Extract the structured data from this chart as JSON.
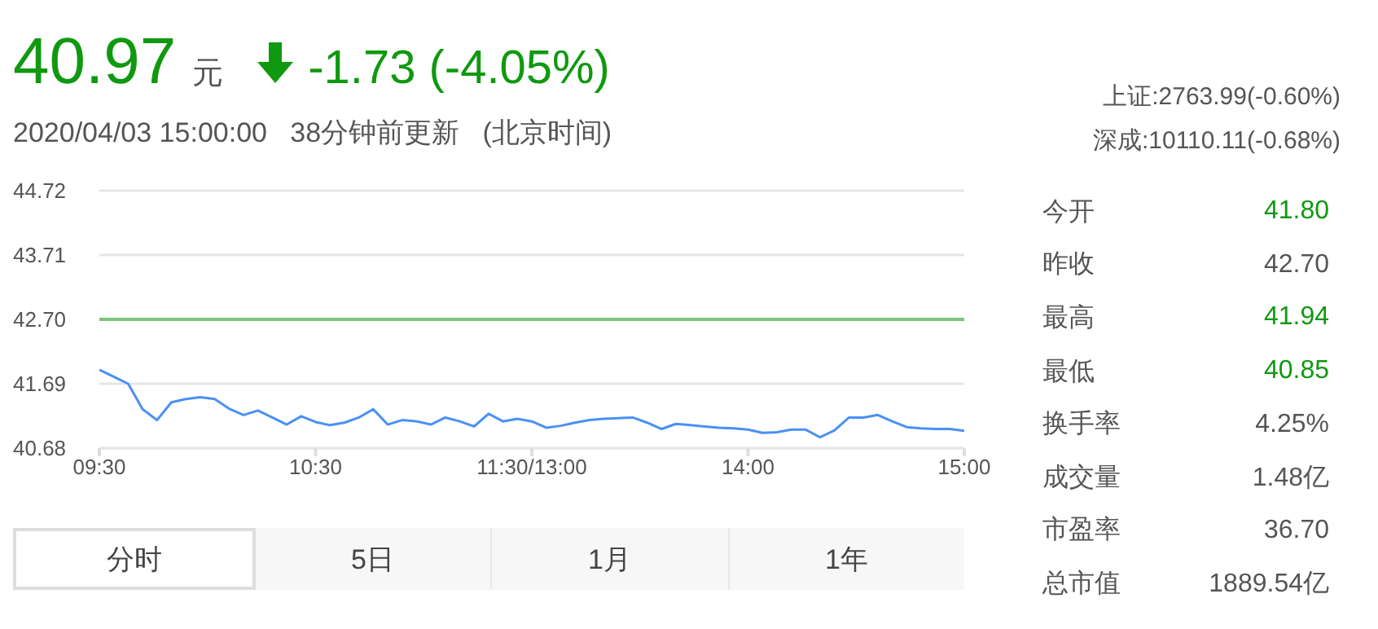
{
  "chart_data": {
    "type": "line",
    "title": "40.97",
    "subtitle": "2020/04/03 15:00:00   38分钟前更新   (北京时间)",
    "annotations": [
      "元",
      "-1.73 (-4.05%)",
      "上证:2763.99(-0.60%)",
      "深成:10110.11(-0.68%)",
      "今开",
      "41.80",
      "昨收",
      "42.70",
      "最高",
      "41.94",
      "最低",
      "40.85",
      "换手率",
      "4.25%",
      "成交量",
      "1.48亿",
      "市盈率",
      "36.70",
      "总市值",
      "1889.54亿",
      "分时",
      "5日",
      "1月",
      "1年"
    ],
    "categories": [
      "09:30",
      null,
      null,
      null,
      null,
      null,
      null,
      null,
      null,
      null,
      null,
      null,
      null,
      null,
      null,
      "10:30",
      null,
      null,
      null,
      null,
      null,
      null,
      null,
      null,
      null,
      null,
      null,
      null,
      null,
      null,
      "11:30/13:00",
      null,
      null,
      null,
      null,
      null,
      null,
      null,
      null,
      null,
      null,
      null,
      null,
      null,
      null,
      "14:00",
      null,
      null,
      null,
      null,
      null,
      null,
      null,
      null,
      null,
      null,
      null,
      null,
      null,
      null,
      "15:00"
    ],
    "series": [
      {
        "color": "#4a90f5",
        "values": [
          41.91,
          41.8,
          41.69,
          41.29,
          41.12,
          41.4,
          41.45,
          41.48,
          41.45,
          41.3,
          41.2,
          41.27,
          41.16,
          41.05,
          41.18,
          41.09,
          41.04,
          41.08,
          41.16,
          41.29,
          41.05,
          41.12,
          41.1,
          41.05,
          41.16,
          41.1,
          41.02,
          41.22,
          41.1,
          41.14,
          41.1,
          41.0,
          41.03,
          41.08,
          41.12,
          41.14,
          41.15,
          41.16,
          41.08,
          40.98,
          41.06,
          41.04,
          41.02,
          41.0,
          40.99,
          40.97,
          40.92,
          40.93,
          40.97,
          40.97,
          40.85,
          40.96,
          41.16,
          41.16,
          41.2,
          41.1,
          41.01,
          40.99,
          40.98,
          40.98,
          40.95
        ]
      }
    ],
    "ylim": [
      40.68,
      44.72
    ],
    "yticks": [
      40.68,
      41.69,
      {
        "value": 42.7,
        "label": "42.70"
      },
      43.71,
      44.72
    ],
    "ref_lines": [
      {
        "axis": "y",
        "value": 42.7,
        "color": "#7cc47c"
      }
    ],
    "grid": "y",
    "legend": false,
    "marker": "none",
    "line_style": "solid"
  }
}
